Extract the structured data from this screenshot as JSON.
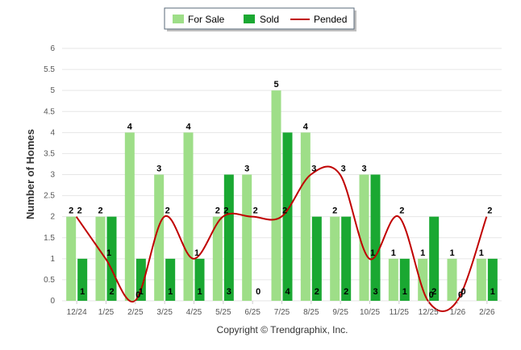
{
  "chart_data": {
    "type": "bar",
    "ylabel": "Number of Homes",
    "ylim": [
      0,
      6
    ],
    "yticks": [
      "0",
      "0.5",
      "1",
      "1.5",
      "2",
      "2.5",
      "3",
      "3.5",
      "4",
      "4.5",
      "5",
      "5.5",
      "6"
    ],
    "categories": [
      "12/24",
      "1/25",
      "2/25",
      "3/25",
      "4/25",
      "5/25",
      "6/25",
      "7/25",
      "8/25",
      "9/25",
      "10/25",
      "11/25",
      "12/25",
      "1/26",
      "2/26"
    ],
    "series": [
      {
        "name": "For Sale",
        "kind": "bar",
        "color": "#9ede88",
        "values": [
          2,
          2,
          4,
          3,
          4,
          2,
          3,
          5,
          4,
          2,
          3,
          1,
          1,
          1,
          1
        ]
      },
      {
        "name": "Sold",
        "kind": "bar",
        "color": "#1aa832",
        "values": [
          1,
          2,
          1,
          1,
          1,
          3,
          0,
          4,
          2,
          2,
          3,
          1,
          2,
          0,
          1
        ]
      },
      {
        "name": "Pended",
        "kind": "line",
        "color": "#c00000",
        "values": [
          2,
          1,
          0,
          2,
          1,
          2,
          2,
          2,
          3,
          3,
          1,
          2,
          0,
          0,
          2
        ]
      }
    ],
    "legend": "top-center",
    "grid": true,
    "footer": "Copyright © Trendgraphix, Inc."
  }
}
